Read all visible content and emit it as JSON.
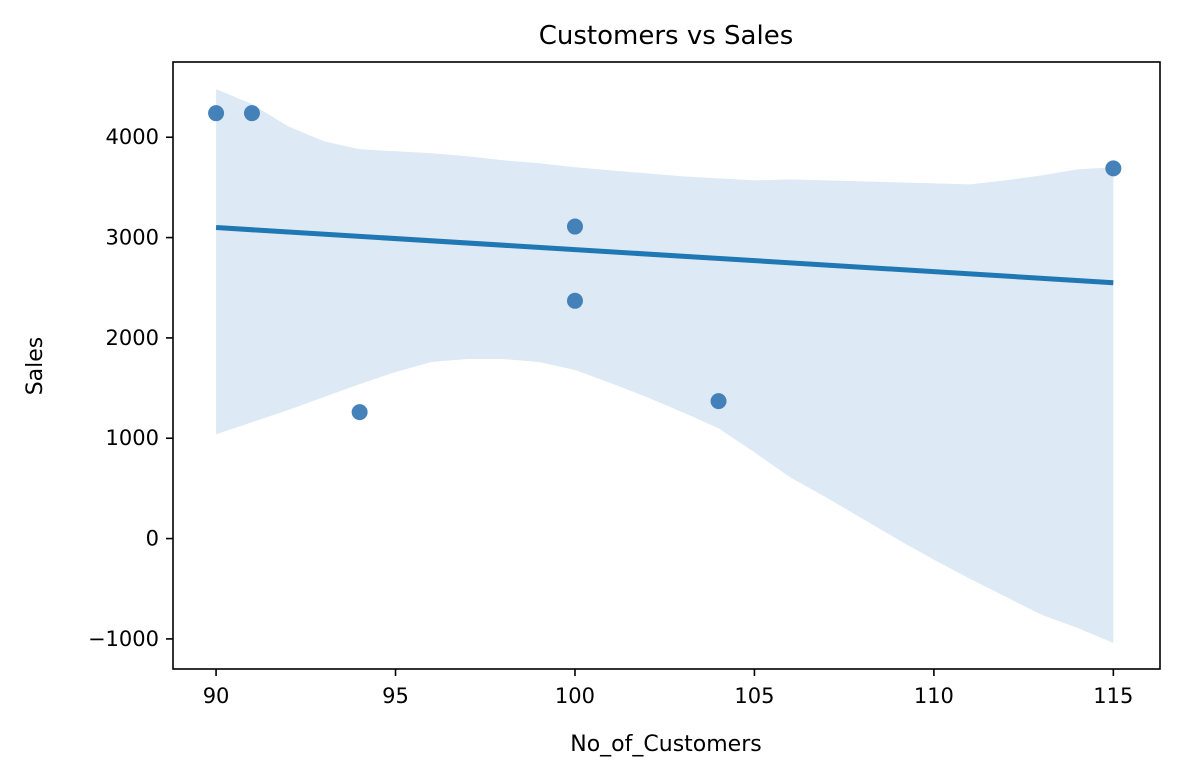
{
  "chart_data": {
    "type": "scatter",
    "title": "Customers vs Sales",
    "xlabel": "No_of_Customers",
    "ylabel": "Sales",
    "xlim": [
      88.8,
      116.3
    ],
    "ylim": [
      -1300,
      4750
    ],
    "xticks": [
      90,
      95,
      100,
      105,
      110,
      115
    ],
    "xtick_labels": [
      "90",
      "95",
      "100",
      "105",
      "110",
      "115"
    ],
    "yticks": [
      -1000,
      0,
      1000,
      2000,
      3000,
      4000
    ],
    "ytick_labels": [
      "−1000",
      "0",
      "1000",
      "2000",
      "3000",
      "4000"
    ],
    "grid": false,
    "points": [
      {
        "x": 90,
        "y": 4240
      },
      {
        "x": 91,
        "y": 4240
      },
      {
        "x": 94,
        "y": 1260
      },
      {
        "x": 100,
        "y": 3110
      },
      {
        "x": 100,
        "y": 2370
      },
      {
        "x": 104,
        "y": 1370
      },
      {
        "x": 115,
        "y": 3690
      }
    ],
    "regression_line": {
      "x": [
        90,
        115
      ],
      "y": [
        3100,
        2550
      ]
    },
    "confidence_band": {
      "x": [
        90,
        91,
        92,
        93,
        94,
        95,
        96,
        97,
        98,
        99,
        100,
        101,
        102,
        103,
        104,
        105,
        106,
        107,
        108,
        109,
        110,
        111,
        112,
        113,
        114,
        115
      ],
      "upper": [
        4480,
        4330,
        4110,
        3960,
        3880,
        3860,
        3840,
        3810,
        3770,
        3740,
        3700,
        3670,
        3640,
        3610,
        3590,
        3570,
        3580,
        3570,
        3560,
        3550,
        3540,
        3530,
        3570,
        3620,
        3680,
        3700
      ],
      "lower": [
        1040,
        1160,
        1280,
        1410,
        1540,
        1660,
        1760,
        1790,
        1790,
        1760,
        1680,
        1550,
        1410,
        1260,
        1100,
        860,
        610,
        410,
        200,
        -10,
        -210,
        -400,
        -580,
        -760,
        -890,
        -1040
      ]
    },
    "colors": {
      "points": "#3b7bb5",
      "line": "#1f77b4",
      "band": "#dde9f4"
    }
  }
}
